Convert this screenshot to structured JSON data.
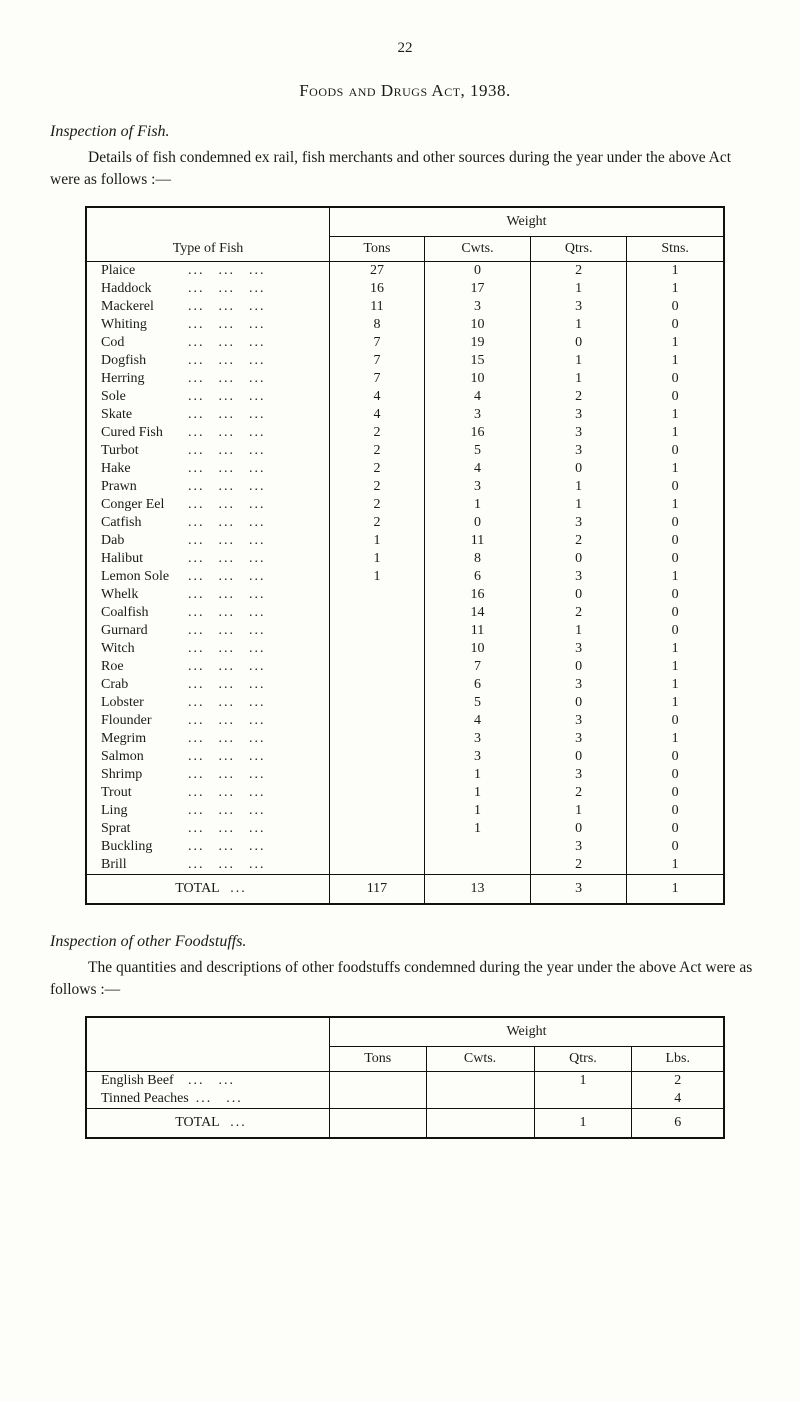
{
  "page_number": "22",
  "act_title": "Foods and Drugs Act, 1938.",
  "fish_section": {
    "title": "Inspection of Fish.",
    "intro": "Details of fish condemned ex rail, fish merchants and other sources during the year under the above Act were as follows :—",
    "headers": {
      "type": "Type of Fish",
      "weight": "Weight",
      "tons": "Tons",
      "cwts": "Cwts.",
      "qtrs": "Qtrs.",
      "stns": "Stns."
    },
    "rows": [
      {
        "name": "Plaice",
        "tons": "27",
        "cwts": "0",
        "qtrs": "2",
        "stns": "1"
      },
      {
        "name": "Haddock",
        "tons": "16",
        "cwts": "17",
        "qtrs": "1",
        "stns": "1"
      },
      {
        "name": "Mackerel",
        "tons": "11",
        "cwts": "3",
        "qtrs": "3",
        "stns": "0"
      },
      {
        "name": "Whiting",
        "tons": "8",
        "cwts": "10",
        "qtrs": "1",
        "stns": "0"
      },
      {
        "name": "Cod",
        "tons": "7",
        "cwts": "19",
        "qtrs": "0",
        "stns": "1"
      },
      {
        "name": "Dogfish",
        "tons": "7",
        "cwts": "15",
        "qtrs": "1",
        "stns": "1"
      },
      {
        "name": "Herring",
        "tons": "7",
        "cwts": "10",
        "qtrs": "1",
        "stns": "0"
      },
      {
        "name": "Sole",
        "tons": "4",
        "cwts": "4",
        "qtrs": "2",
        "stns": "0"
      },
      {
        "name": "Skate",
        "tons": "4",
        "cwts": "3",
        "qtrs": "3",
        "stns": "1"
      },
      {
        "name": "Cured Fish",
        "tons": "2",
        "cwts": "16",
        "qtrs": "3",
        "stns": "1"
      },
      {
        "name": "Turbot",
        "tons": "2",
        "cwts": "5",
        "qtrs": "3",
        "stns": "0"
      },
      {
        "name": "Hake",
        "tons": "2",
        "cwts": "4",
        "qtrs": "0",
        "stns": "1"
      },
      {
        "name": "Prawn",
        "tons": "2",
        "cwts": "3",
        "qtrs": "1",
        "stns": "0"
      },
      {
        "name": "Conger Eel",
        "tons": "2",
        "cwts": "1",
        "qtrs": "1",
        "stns": "1"
      },
      {
        "name": "Catfish",
        "tons": "2",
        "cwts": "0",
        "qtrs": "3",
        "stns": "0"
      },
      {
        "name": "Dab",
        "tons": "1",
        "cwts": "11",
        "qtrs": "2",
        "stns": "0"
      },
      {
        "name": "Halibut",
        "tons": "1",
        "cwts": "8",
        "qtrs": "0",
        "stns": "0"
      },
      {
        "name": "Lemon Sole",
        "tons": "1",
        "cwts": "6",
        "qtrs": "3",
        "stns": "1"
      },
      {
        "name": "Whelk",
        "tons": "",
        "cwts": "16",
        "qtrs": "0",
        "stns": "0"
      },
      {
        "name": "Coalfish",
        "tons": "",
        "cwts": "14",
        "qtrs": "2",
        "stns": "0"
      },
      {
        "name": "Gurnard",
        "tons": "",
        "cwts": "11",
        "qtrs": "1",
        "stns": "0"
      },
      {
        "name": "Witch",
        "tons": "",
        "cwts": "10",
        "qtrs": "3",
        "stns": "1"
      },
      {
        "name": "Roe",
        "tons": "",
        "cwts": "7",
        "qtrs": "0",
        "stns": "1"
      },
      {
        "name": "Crab",
        "tons": "",
        "cwts": "6",
        "qtrs": "3",
        "stns": "1"
      },
      {
        "name": "Lobster",
        "tons": "",
        "cwts": "5",
        "qtrs": "0",
        "stns": "1"
      },
      {
        "name": "Flounder",
        "tons": "",
        "cwts": "4",
        "qtrs": "3",
        "stns": "0"
      },
      {
        "name": "Megrim",
        "tons": "",
        "cwts": "3",
        "qtrs": "3",
        "stns": "1"
      },
      {
        "name": "Salmon",
        "tons": "",
        "cwts": "3",
        "qtrs": "0",
        "stns": "0"
      },
      {
        "name": "Shrimp",
        "tons": "",
        "cwts": "1",
        "qtrs": "3",
        "stns": "0"
      },
      {
        "name": "Trout",
        "tons": "",
        "cwts": "1",
        "qtrs": "2",
        "stns": "0"
      },
      {
        "name": "Ling",
        "tons": "",
        "cwts": "1",
        "qtrs": "1",
        "stns": "0"
      },
      {
        "name": "Sprat",
        "tons": "",
        "cwts": "1",
        "qtrs": "0",
        "stns": "0"
      },
      {
        "name": "Buckling",
        "tons": "",
        "cwts": "",
        "qtrs": "3",
        "stns": "0"
      },
      {
        "name": "Brill",
        "tons": "",
        "cwts": "",
        "qtrs": "2",
        "stns": "1"
      }
    ],
    "total_label": "TOTAL",
    "total": {
      "tons": "117",
      "cwts": "13",
      "qtrs": "3",
      "stns": "1"
    }
  },
  "foods_section": {
    "title": "Inspection of other Foodstuffs.",
    "intro": "The quantities and descriptions of other foodstuffs condemned during the year under the above Act were as follows :—",
    "headers": {
      "weight": "Weight",
      "tons": "Tons",
      "cwts": "Cwts.",
      "qtrs": "Qtrs.",
      "lbs": "Lbs."
    },
    "rows": [
      {
        "name": "English Beef",
        "tons": "",
        "cwts": "",
        "qtrs": "1",
        "lbs": "2"
      },
      {
        "name": "Tinned Peaches",
        "tons": "",
        "cwts": "",
        "qtrs": "",
        "lbs": "4"
      }
    ],
    "total_label": "TOTAL",
    "total": {
      "tons": "",
      "cwts": "",
      "qtrs": "1",
      "lbs": "6"
    }
  }
}
